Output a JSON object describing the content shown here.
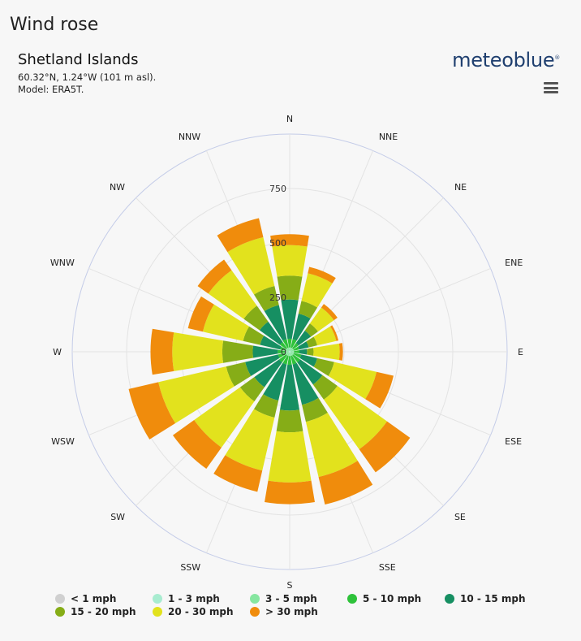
{
  "page": {
    "title": "Wind rose"
  },
  "location": {
    "name": "Shetland Islands",
    "coords": "60.32°N, 1.24°W (101 m asl).",
    "model": "Model: ERA5T."
  },
  "brand": {
    "name": "meteoblue",
    "mark": "®"
  },
  "chart_data": {
    "type": "wind-rose",
    "directions": [
      "N",
      "NNE",
      "NE",
      "ENE",
      "E",
      "ESE",
      "SE",
      "SSE",
      "S",
      "SSW",
      "SW",
      "WSW",
      "W",
      "WNW",
      "NW",
      "NNW"
    ],
    "radial_ticks": [
      0,
      250,
      500,
      750
    ],
    "radial_max": 1000,
    "grid": true,
    "legend_position": "bottom",
    "bins": [
      {
        "name": "< 1 mph",
        "color": "#d0d0d0"
      },
      {
        "name": "1 - 3 mph",
        "color": "#a8ecd0"
      },
      {
        "name": "3 - 5 mph",
        "color": "#86e6a0"
      },
      {
        "name": "5 - 10 mph",
        "color": "#2ec23a"
      },
      {
        "name": "10 - 15 mph",
        "color": "#168f62"
      },
      {
        "name": "15 - 20 mph",
        "color": "#86ad17"
      },
      {
        "name": "20 - 30 mph",
        "color": "#e2e21d"
      },
      {
        "name": "> 30 mph",
        "color": "#f08c0c"
      }
    ],
    "cumulative_values": [
      [
        0,
        5,
        20,
        60,
        240,
        350,
        490,
        540
      ],
      [
        0,
        5,
        20,
        60,
        180,
        240,
        370,
        400
      ],
      [
        0,
        5,
        20,
        50,
        120,
        160,
        250,
        270
      ],
      [
        0,
        5,
        20,
        45,
        90,
        130,
        220,
        230
      ],
      [
        0,
        5,
        20,
        45,
        80,
        110,
        230,
        245
      ],
      [
        0,
        5,
        20,
        55,
        130,
        210,
        410,
        490
      ],
      [
        0,
        5,
        20,
        60,
        185,
        270,
        550,
        680
      ],
      [
        0,
        5,
        20,
        60,
        250,
        330,
        590,
        720
      ],
      [
        0,
        5,
        20,
        60,
        270,
        370,
        600,
        700
      ],
      [
        0,
        5,
        20,
        60,
        230,
        310,
        560,
        660
      ],
      [
        0,
        5,
        20,
        60,
        200,
        280,
        540,
        660
      ],
      [
        0,
        5,
        20,
        55,
        210,
        300,
        620,
        760
      ],
      [
        0,
        5,
        20,
        55,
        170,
        310,
        540,
        640
      ],
      [
        0,
        5,
        20,
        45,
        140,
        220,
        410,
        480
      ],
      [
        0,
        5,
        20,
        55,
        170,
        260,
        460,
        520
      ],
      [
        0,
        5,
        20,
        60,
        220,
        310,
        540,
        630
      ]
    ]
  }
}
